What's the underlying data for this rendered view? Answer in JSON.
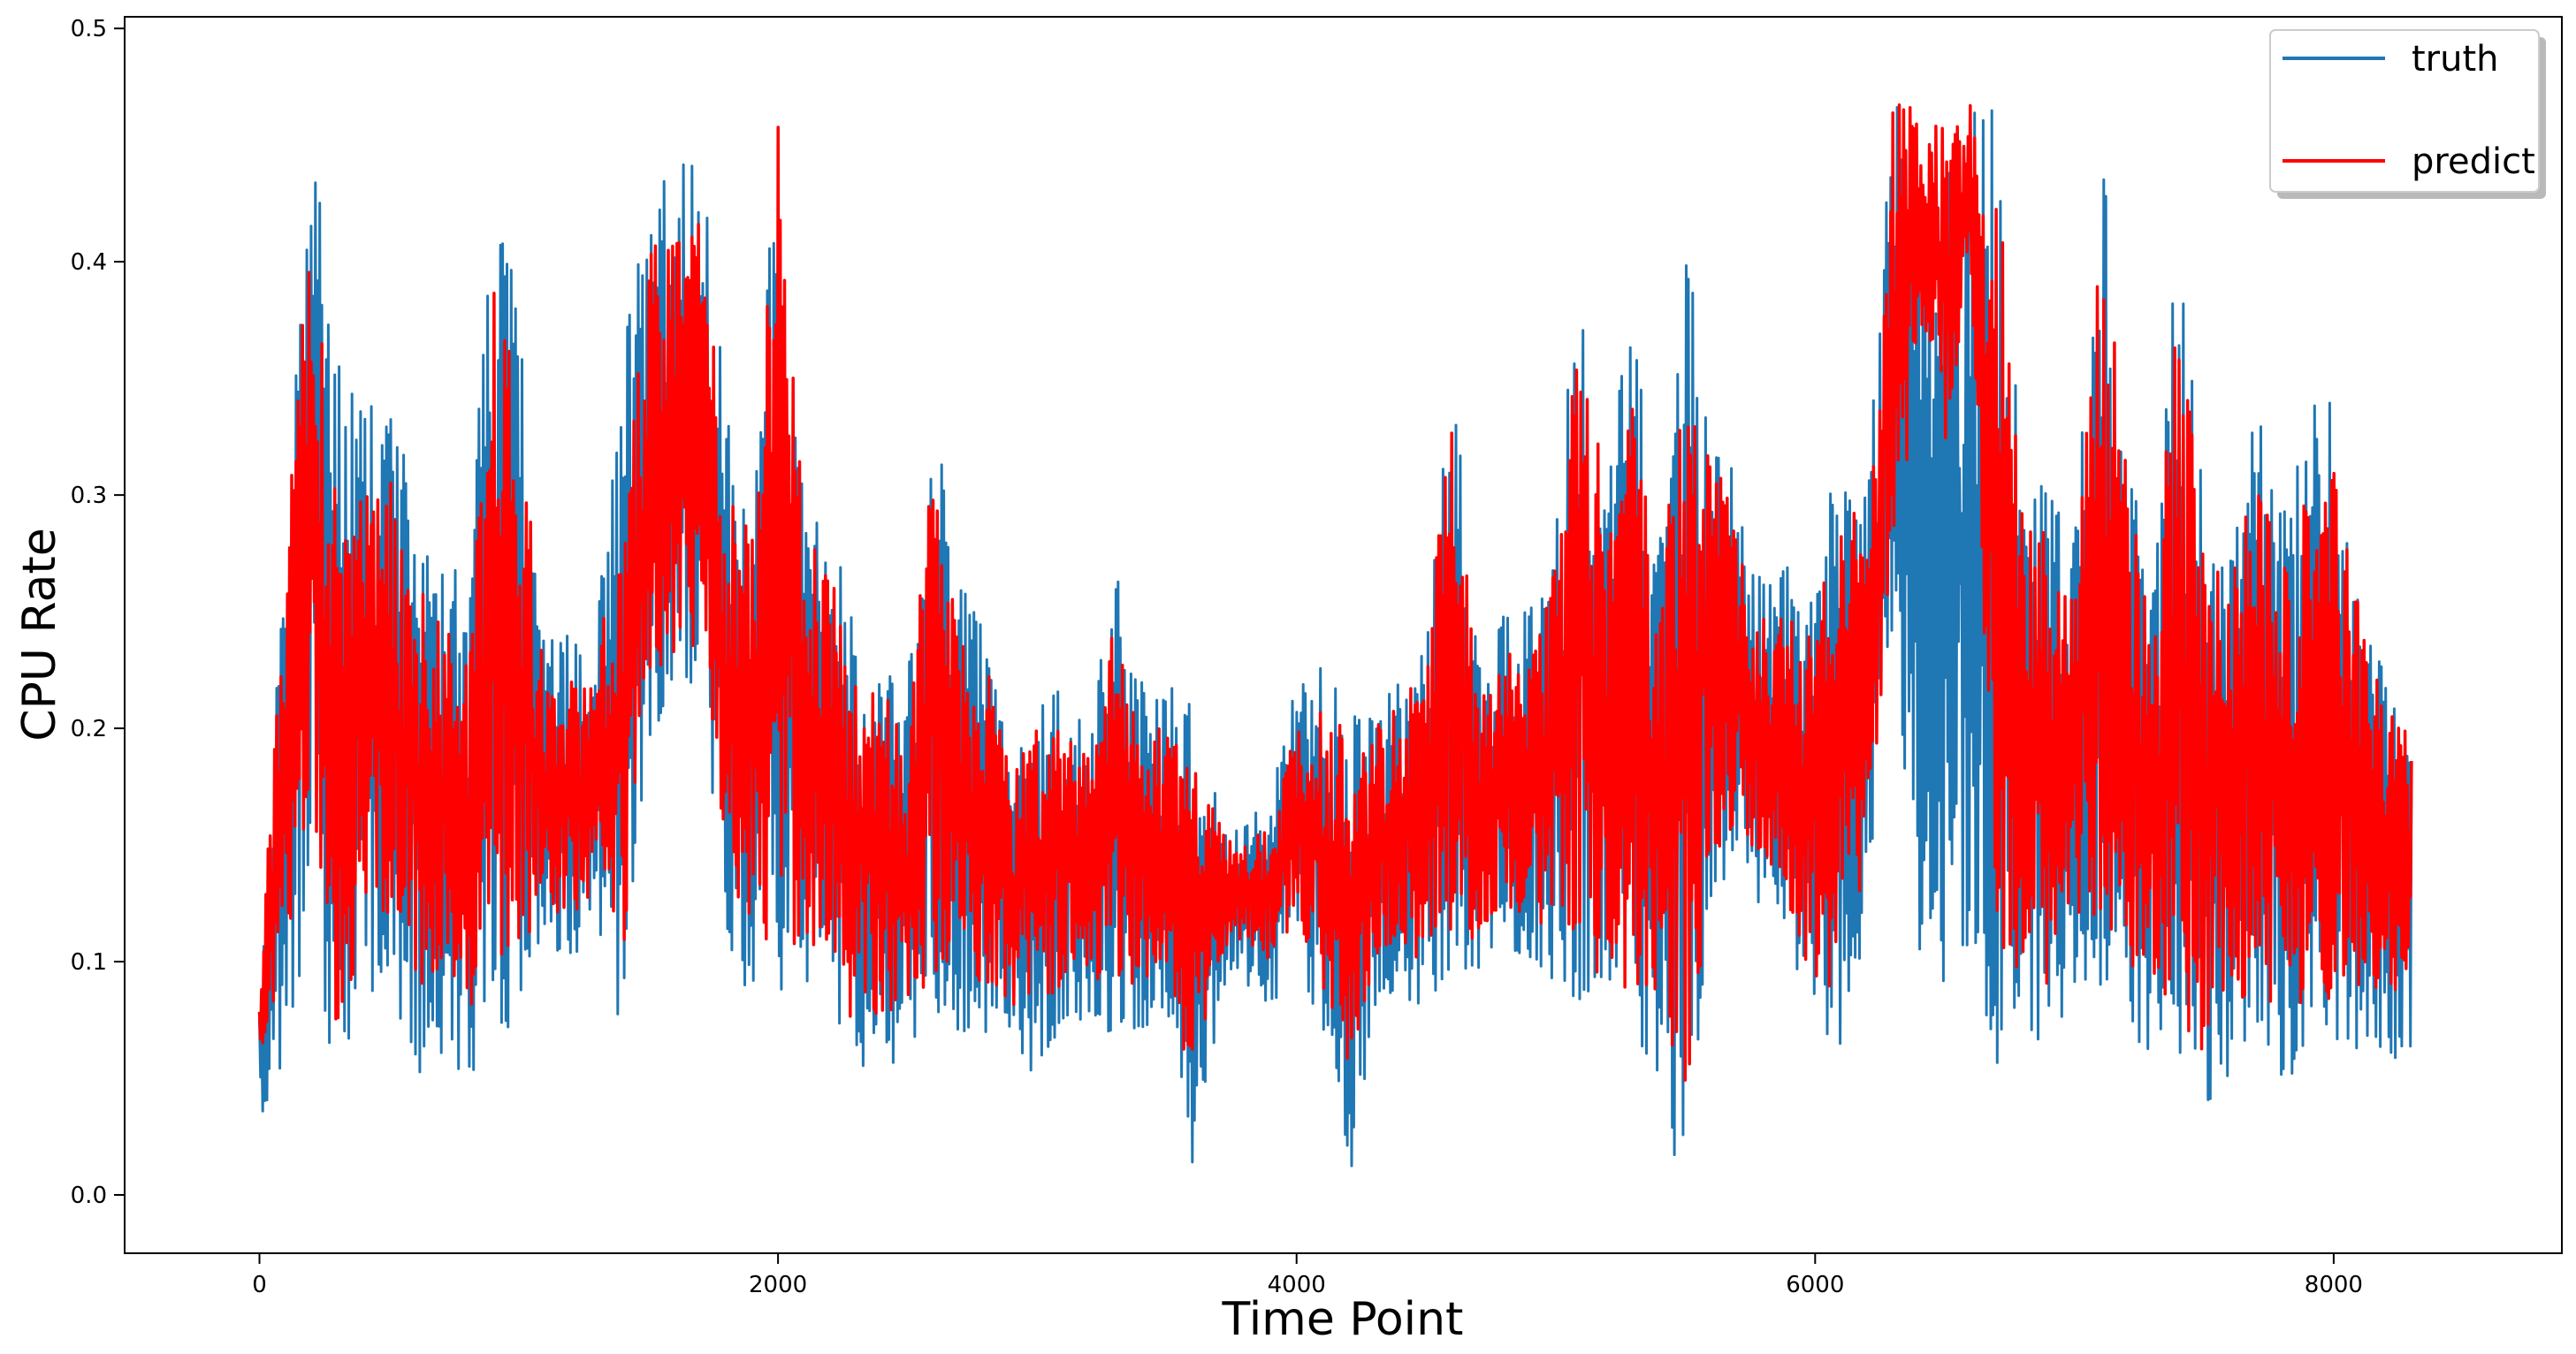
{
  "chart_data": {
    "type": "line",
    "title": "",
    "xlabel": "Time Point",
    "ylabel": "CPU Rate",
    "xlim": [
      -520,
      8880
    ],
    "ylim": [
      -0.025,
      0.505
    ],
    "x_ticks": [
      0,
      2000,
      4000,
      6000,
      8000
    ],
    "x_tick_labels": [
      "0",
      "2000",
      "4000",
      "6000",
      "8000"
    ],
    "y_ticks": [
      0.0,
      0.1,
      0.2,
      0.3,
      0.4,
      0.5
    ],
    "y_tick_labels": [
      "0.0",
      "0.1",
      "0.2",
      "0.3",
      "0.4",
      "0.5"
    ],
    "grid": false,
    "legend": {
      "placement": "top-right",
      "entries": [
        "truth",
        "predict"
      ]
    },
    "x_points": [
      0,
      100,
      200,
      300,
      400,
      500,
      600,
      700,
      800,
      900,
      1000,
      1100,
      1200,
      1300,
      1400,
      1500,
      1600,
      1700,
      1800,
      1900,
      2000,
      2100,
      2200,
      2300,
      2400,
      2500,
      2600,
      2700,
      2800,
      2900,
      3000,
      3100,
      3200,
      3300,
      3400,
      3500,
      3600,
      3700,
      3800,
      3900,
      4000,
      4100,
      4200,
      4300,
      4400,
      4500,
      4600,
      4700,
      4800,
      4900,
      5000,
      5100,
      5200,
      5300,
      5400,
      5500,
      5600,
      5700,
      5800,
      5900,
      6000,
      6100,
      6200,
      6300,
      6400,
      6500,
      6600,
      6700,
      6800,
      6900,
      7000,
      7100,
      7200,
      7300,
      7400,
      7500,
      7600,
      7700,
      7800,
      7900,
      8000,
      8100,
      8200,
      8300
    ],
    "series": [
      {
        "name": "truth",
        "color": "#1f77b4",
        "width": 3,
        "max": [
          0.08,
          0.3,
          0.47,
          0.36,
          0.34,
          0.34,
          0.3,
          0.28,
          0.27,
          0.43,
          0.39,
          0.24,
          0.24,
          0.24,
          0.37,
          0.43,
          0.44,
          0.45,
          0.34,
          0.3,
          0.48,
          0.3,
          0.29,
          0.24,
          0.24,
          0.22,
          0.36,
          0.26,
          0.25,
          0.19,
          0.21,
          0.22,
          0.2,
          0.27,
          0.22,
          0.22,
          0.21,
          0.17,
          0.16,
          0.17,
          0.22,
          0.23,
          0.21,
          0.21,
          0.22,
          0.24,
          0.36,
          0.23,
          0.25,
          0.26,
          0.29,
          0.44,
          0.3,
          0.4,
          0.28,
          0.41,
          0.36,
          0.3,
          0.27,
          0.27,
          0.26,
          0.33,
          0.3,
          0.47,
          0.47,
          0.46,
          0.48,
          0.47,
          0.31,
          0.31,
          0.28,
          0.47,
          0.33,
          0.26,
          0.43,
          0.3,
          0.28,
          0.34,
          0.3,
          0.34,
          0.34,
          0.27,
          0.22,
          0.21
        ],
        "min": [
          0.03,
          0.05,
          0.13,
          0.02,
          0.08,
          0.09,
          0.05,
          0.06,
          0.05,
          0.06,
          0.08,
          0.1,
          0.1,
          0.11,
          0.07,
          0.19,
          0.21,
          0.22,
          0.11,
          0.08,
          0.08,
          0.09,
          0.07,
          0.05,
          0.05,
          0.06,
          0.07,
          0.07,
          0.07,
          0.06,
          0.05,
          0.07,
          0.07,
          0.07,
          0.07,
          0.08,
          0.0,
          0.08,
          0.09,
          0.08,
          0.1,
          0.07,
          0.0,
          0.08,
          0.08,
          0.08,
          0.09,
          0.09,
          0.1,
          0.1,
          0.09,
          0.08,
          0.06,
          0.07,
          0.04,
          0.0,
          0.12,
          0.14,
          0.12,
          0.1,
          0.08,
          0.05,
          0.12,
          0.23,
          0.1,
          0.09,
          0.1,
          0.05,
          0.06,
          0.06,
          0.09,
          0.09,
          0.07,
          0.06,
          0.04,
          0.03,
          0.05,
          0.05,
          0.05,
          0.05,
          0.05,
          0.05,
          0.06,
          0.05
        ]
      },
      {
        "name": "predict",
        "color": "#ff0000",
        "width": 3.5,
        "max": [
          0.08,
          0.29,
          0.42,
          0.3,
          0.3,
          0.31,
          0.27,
          0.25,
          0.24,
          0.39,
          0.35,
          0.22,
          0.22,
          0.22,
          0.32,
          0.41,
          0.41,
          0.42,
          0.31,
          0.28,
          0.46,
          0.29,
          0.27,
          0.22,
          0.22,
          0.2,
          0.32,
          0.24,
          0.23,
          0.18,
          0.2,
          0.2,
          0.19,
          0.25,
          0.2,
          0.2,
          0.19,
          0.16,
          0.15,
          0.16,
          0.2,
          0.21,
          0.2,
          0.2,
          0.21,
          0.23,
          0.34,
          0.21,
          0.23,
          0.24,
          0.27,
          0.4,
          0.28,
          0.35,
          0.26,
          0.36,
          0.33,
          0.28,
          0.25,
          0.25,
          0.24,
          0.31,
          0.28,
          0.47,
          0.47,
          0.46,
          0.47,
          0.46,
          0.29,
          0.29,
          0.26,
          0.44,
          0.31,
          0.24,
          0.39,
          0.28,
          0.26,
          0.32,
          0.28,
          0.31,
          0.31,
          0.25,
          0.21,
          0.2
        ],
        "min": [
          0.06,
          0.1,
          0.16,
          0.07,
          0.11,
          0.12,
          0.09,
          0.09,
          0.08,
          0.09,
          0.1,
          0.12,
          0.12,
          0.13,
          0.1,
          0.21,
          0.23,
          0.23,
          0.14,
          0.11,
          0.1,
          0.11,
          0.09,
          0.07,
          0.07,
          0.08,
          0.09,
          0.09,
          0.09,
          0.08,
          0.08,
          0.09,
          0.09,
          0.09,
          0.09,
          0.1,
          0.04,
          0.1,
          0.11,
          0.1,
          0.12,
          0.09,
          0.05,
          0.1,
          0.1,
          0.1,
          0.11,
          0.11,
          0.12,
          0.12,
          0.11,
          0.1,
          0.08,
          0.09,
          0.07,
          0.04,
          0.14,
          0.16,
          0.14,
          0.12,
          0.09,
          0.08,
          0.15,
          0.26,
          0.36,
          0.32,
          0.4,
          0.09,
          0.09,
          0.09,
          0.12,
          0.12,
          0.1,
          0.08,
          0.06,
          0.05,
          0.08,
          0.08,
          0.08,
          0.08,
          0.08,
          0.08,
          0.09,
          0.08
        ]
      }
    ]
  }
}
